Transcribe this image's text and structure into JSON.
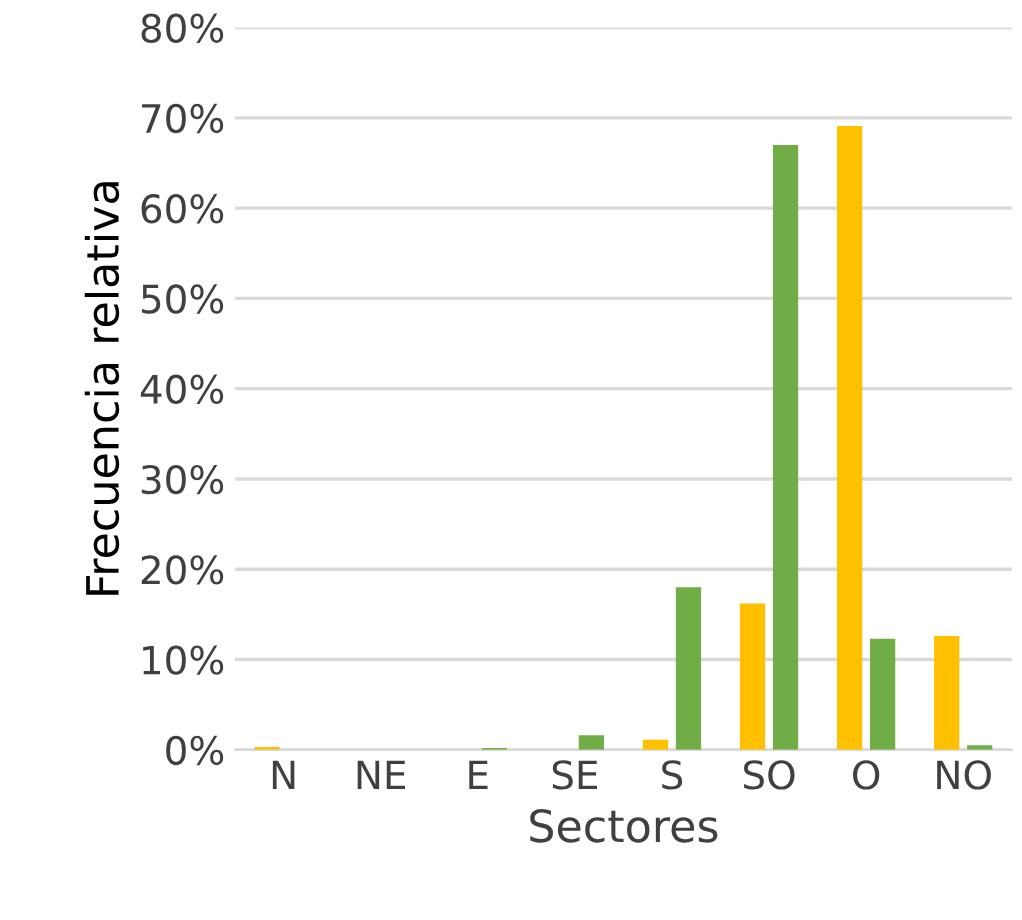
{
  "chart_data": {
    "type": "bar",
    "xlabel": "Sectores",
    "ylabel": "Frecuencia relativa",
    "categories": [
      "N",
      "NE",
      "E",
      "SE",
      "S",
      "SO",
      "O",
      "NO"
    ],
    "series": [
      {
        "color": "#ffc000",
        "values": [
          0.3,
          0,
          0,
          0,
          1.1,
          16.2,
          69.1,
          12.6
        ]
      },
      {
        "color": "#70ad47",
        "values": [
          0,
          0,
          0.2,
          1.6,
          18.0,
          67.0,
          12.3,
          0.5
        ]
      }
    ],
    "ylim": [
      0,
      80
    ],
    "yticks": [
      {
        "value": 0,
        "label": "0%"
      },
      {
        "value": 10,
        "label": "10%"
      },
      {
        "value": 20,
        "label": "20%"
      },
      {
        "value": 30,
        "label": "30%"
      },
      {
        "value": 40,
        "label": "40%"
      },
      {
        "value": 50,
        "label": "50%"
      },
      {
        "value": 60,
        "label": "60%"
      },
      {
        "value": 70,
        "label": "70%"
      },
      {
        "value": 80,
        "label": "80%"
      }
    ],
    "grid": "y",
    "legend": false
  }
}
